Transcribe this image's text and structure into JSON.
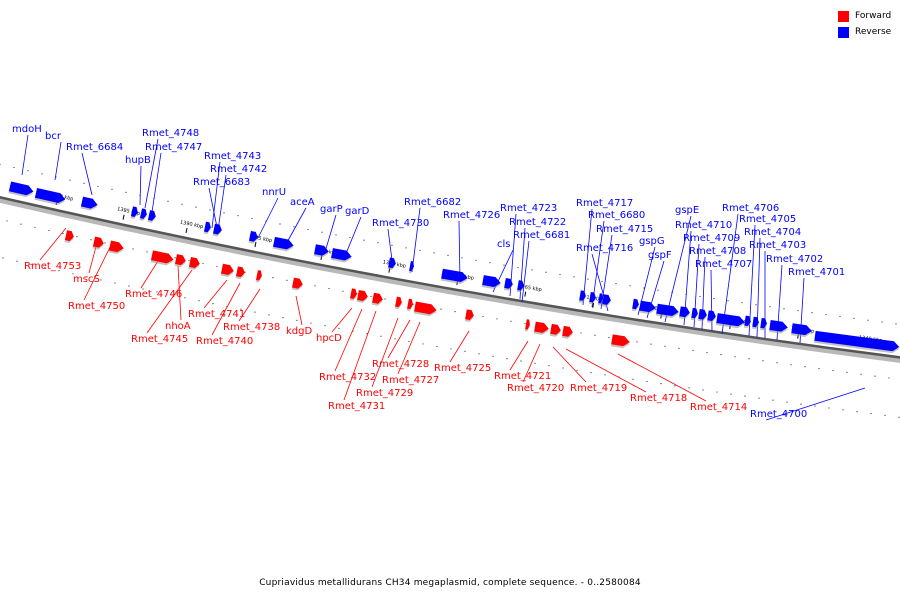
{
  "legend": {
    "forward_label": "Forward",
    "reverse_label": "Reverse",
    "forward_color": "#ff0000",
    "reverse_color": "#0000ff"
  },
  "caption": "Cupriavidus metallidurans CH34 megaplasmid, complete sequence. - 0..2580084",
  "backbone_ticks": [
    "1400 kbp",
    "1395 kbp",
    "1390 kbp",
    "1385 kbp",
    "1380 kbp",
    "1375 kbp",
    "1370 kbp",
    "1365 kbp",
    "1360 kbp",
    "1355 kbp",
    "1350 kbp",
    "1345 kbp",
    "1340 kbp"
  ],
  "reverse_genes": [
    "mdoH",
    "bcr",
    "Rmet_6684",
    "hupB",
    "Rmet_4748",
    "Rmet_4747",
    "Rmet_4743",
    "Rmet_4742",
    "Rmet_6683",
    "nnrU",
    "aceA",
    "garP",
    "garD",
    "Rmet_4730",
    "Rmet_6682",
    "Rmet_4726",
    "cls",
    "Rmet_4723",
    "Rmet_4722",
    "Rmet_6681",
    "Rmet_4717",
    "Rmet_6680",
    "Rmet_4715",
    "Rmet_4716",
    "gspG",
    "gspF",
    "gspE",
    "Rmet_4710",
    "Rmet_4709",
    "Rmet_4708",
    "Rmet_4707",
    "Rmet_4706",
    "Rmet_4705",
    "Rmet_4704",
    "Rmet_4703",
    "Rmet_4702",
    "Rmet_4701",
    "Rmet_4700"
  ],
  "forward_genes": [
    "Rmet_4753",
    "mscS",
    "Rmet_4750",
    "Rmet_4746",
    "nhoA",
    "Rmet_4745",
    "Rmet_4741",
    "Rmet_4740",
    "Rmet_4738",
    "kdgD",
    "hpcD",
    "Rmet_4732",
    "Rmet_4731",
    "Rmet_4729",
    "Rmet_4728",
    "Rmet_4727",
    "Rmet_4725",
    "Rmet_4721",
    "Rmet_4720",
    "Rmet_4719",
    "Rmet_4718",
    "Rmet_4714"
  ]
}
